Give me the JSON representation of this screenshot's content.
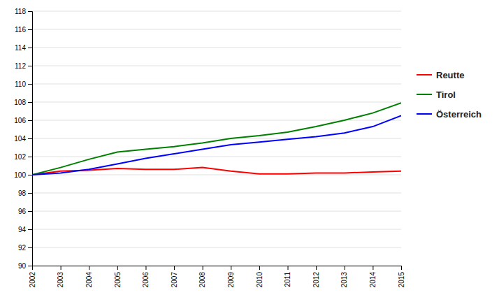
{
  "chart_data": {
    "type": "line",
    "x": [
      2002,
      2003,
      2004,
      2005,
      2006,
      2007,
      2008,
      2009,
      2010,
      2011,
      2012,
      2013,
      2014,
      2015
    ],
    "xlim": [
      2002,
      2015
    ],
    "xticks": [
      2002,
      2003,
      2004,
      2005,
      2006,
      2007,
      2008,
      2009,
      2010,
      2011,
      2012,
      2013,
      2014,
      2015
    ],
    "ylim": [
      90,
      118
    ],
    "yticks": [
      90,
      92,
      94,
      96,
      98,
      100,
      102,
      104,
      106,
      108,
      110,
      112,
      114,
      116,
      118
    ],
    "grid": true,
    "legend": "right",
    "series": [
      {
        "name": "Reutte",
        "color": "#FF0000",
        "values": [
          100.0,
          100.4,
          100.5,
          100.7,
          100.6,
          100.6,
          100.8,
          100.4,
          100.1,
          100.1,
          100.2,
          100.2,
          100.3,
          100.4
        ]
      },
      {
        "name": "Tirol",
        "color": "#008000",
        "values": [
          100.0,
          100.8,
          101.7,
          102.5,
          102.8,
          103.1,
          103.5,
          104.0,
          104.3,
          104.7,
          105.3,
          106.0,
          106.8,
          107.9
        ]
      },
      {
        "name": "Österreich",
        "color": "#0000FF",
        "values": [
          100.0,
          100.2,
          100.6,
          101.2,
          101.8,
          102.3,
          102.8,
          103.3,
          103.6,
          103.9,
          104.2,
          104.6,
          105.3,
          106.5
        ]
      }
    ]
  }
}
